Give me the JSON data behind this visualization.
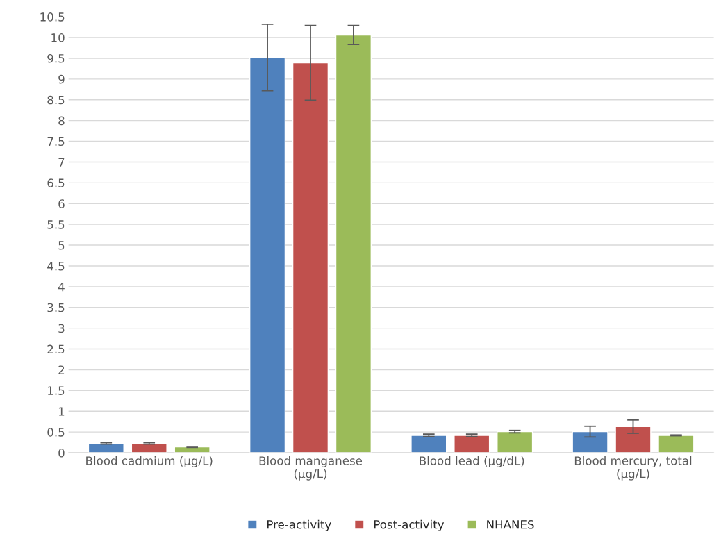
{
  "chart_data": {
    "type": "bar",
    "categories": [
      "Blood cadmium (µg/L)",
      "Blood manganese\n(µg/L)",
      "Blood lead (µg/dL)",
      "Blood mercury, total\n(µg/L)"
    ],
    "series": [
      {
        "name": "Pre-activity",
        "color": "#4f81bd",
        "values": [
          0.23,
          9.52,
          0.42,
          0.51
        ],
        "errors": [
          0.02,
          0.8,
          0.03,
          0.13
        ]
      },
      {
        "name": "Post-activity",
        "color": "#c0504d",
        "values": [
          0.23,
          9.39,
          0.42,
          0.63
        ],
        "errors": [
          0.02,
          0.9,
          0.03,
          0.16
        ]
      },
      {
        "name": "NHANES",
        "color": "#9bbb59",
        "values": [
          0.14,
          10.06,
          0.51,
          0.42
        ],
        "errors": [
          0.01,
          0.23,
          0.03,
          0.01
        ]
      }
    ],
    "ylim": [
      0,
      10.5
    ],
    "yticks": [
      0,
      0.5,
      1,
      1.5,
      2,
      2.5,
      3,
      3.5,
      4,
      4.5,
      5,
      5.5,
      6,
      6.5,
      7,
      7.5,
      8,
      8.5,
      9,
      9.5,
      10,
      10.5
    ],
    "grid": "y",
    "legend": "bottom"
  }
}
